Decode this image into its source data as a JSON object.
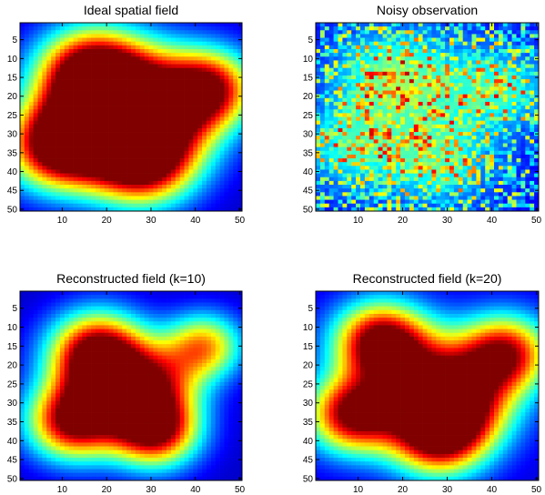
{
  "chart_data": [
    {
      "type": "heatmap",
      "title": "Ideal spatial field",
      "grid_size": [
        50,
        50
      ],
      "xlim": [
        0.5,
        50.5
      ],
      "ylim": [
        0.5,
        50.5
      ],
      "x_ticks": [
        10,
        20,
        30,
        40,
        50
      ],
      "y_ticks": [
        5,
        10,
        15,
        20,
        25,
        30,
        35,
        40,
        45,
        50
      ],
      "y_reversed": true,
      "colormap": "jet",
      "color_range": [
        0,
        1
      ],
      "field": {
        "kind": "smooth",
        "base": 0.07,
        "peaks": [
          {
            "x": 16,
            "y": 14,
            "amp": 0.96,
            "sigma": 8.2
          },
          {
            "x": 27,
            "y": 18,
            "amp": 0.66,
            "sigma": 9.0
          },
          {
            "x": 43,
            "y": 18,
            "amp": 0.86,
            "sigma": 7.2
          },
          {
            "x": 9,
            "y": 33,
            "amp": 0.97,
            "sigma": 8.0
          },
          {
            "x": 28,
            "y": 37,
            "amp": 0.99,
            "sigma": 8.2
          },
          {
            "x": 18,
            "y": 28,
            "amp": 0.55,
            "sigma": 9.5
          },
          {
            "x": 35,
            "y": 28,
            "amp": 0.4,
            "sigma": 8.5
          }
        ]
      }
    },
    {
      "type": "heatmap",
      "title": "Noisy observation",
      "grid_size": [
        50,
        50
      ],
      "xlim": [
        0.5,
        50.5
      ],
      "ylim": [
        0.5,
        50.5
      ],
      "x_ticks": [
        10,
        20,
        30,
        40,
        50
      ],
      "y_ticks": [
        5,
        10,
        15,
        20,
        25,
        30,
        35,
        40,
        45,
        50
      ],
      "y_reversed": true,
      "colormap": "jet",
      "color_range": [
        0,
        1
      ],
      "field": {
        "kind": "noisy",
        "seed": 7,
        "base": 0.08,
        "signal_scale": 0.28,
        "noise_scale": 0.35,
        "peaks": [
          {
            "x": 16,
            "y": 14,
            "amp": 0.96,
            "sigma": 8.2
          },
          {
            "x": 27,
            "y": 18,
            "amp": 0.66,
            "sigma": 9.0
          },
          {
            "x": 43,
            "y": 18,
            "amp": 0.86,
            "sigma": 7.2
          },
          {
            "x": 9,
            "y": 33,
            "amp": 0.97,
            "sigma": 8.0
          },
          {
            "x": 28,
            "y": 37,
            "amp": 0.99,
            "sigma": 8.2
          }
        ]
      }
    },
    {
      "type": "heatmap",
      "title": "Reconstructed field (k=10)",
      "grid_size": [
        50,
        50
      ],
      "xlim": [
        0.5,
        50.5
      ],
      "ylim": [
        0.5,
        50.5
      ],
      "x_ticks": [
        10,
        20,
        30,
        40,
        50
      ],
      "y_ticks": [
        5,
        10,
        15,
        20,
        25,
        30,
        35,
        40,
        45,
        50
      ],
      "y_reversed": true,
      "colormap": "jet",
      "color_range": [
        0,
        1
      ],
      "field": {
        "kind": "smooth",
        "base": 0.07,
        "peaks": [
          {
            "x": 18,
            "y": 17,
            "amp": 0.98,
            "sigma": 7.5
          },
          {
            "x": 42,
            "y": 15,
            "amp": 0.62,
            "sigma": 6.0
          },
          {
            "x": 12,
            "y": 35,
            "amp": 0.84,
            "sigma": 7.0
          },
          {
            "x": 31,
            "y": 37,
            "amp": 0.92,
            "sigma": 6.8
          },
          {
            "x": 22,
            "y": 28,
            "amp": 0.58,
            "sigma": 8.5
          },
          {
            "x": 32,
            "y": 24,
            "amp": 0.45,
            "sigma": 7.0
          }
        ]
      }
    },
    {
      "type": "heatmap",
      "title": "Reconstructed field (k=20)",
      "grid_size": [
        50,
        50
      ],
      "xlim": [
        0.5,
        50.5
      ],
      "ylim": [
        0.5,
        50.5
      ],
      "x_ticks": [
        10,
        20,
        30,
        40,
        50
      ],
      "y_ticks": [
        5,
        10,
        15,
        20,
        25,
        30,
        35,
        40,
        45,
        50
      ],
      "y_reversed": true,
      "colormap": "jet",
      "color_range": [
        0,
        1
      ],
      "field": {
        "kind": "smooth",
        "base": 0.09,
        "peaks": [
          {
            "x": 15,
            "y": 14,
            "amp": 0.96,
            "sigma": 7.2
          },
          {
            "x": 43,
            "y": 17,
            "amp": 0.84,
            "sigma": 7.0
          },
          {
            "x": 9,
            "y": 33,
            "amp": 0.94,
            "sigma": 7.0
          },
          {
            "x": 28,
            "y": 38,
            "amp": 0.98,
            "sigma": 7.6
          },
          {
            "x": 26,
            "y": 24,
            "amp": 0.68,
            "sigma": 9.0
          },
          {
            "x": 35,
            "y": 30,
            "amp": 0.5,
            "sigma": 8.0
          }
        ]
      }
    }
  ]
}
